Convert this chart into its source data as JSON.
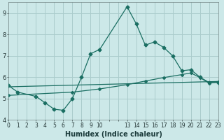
{
  "xlabel": "Humidex (Indice chaleur)",
  "bg_color": "#cce8e8",
  "grid_color": "#aacccc",
  "line_color": "#1a6e62",
  "line1_x": [
    0,
    1,
    3,
    4,
    5,
    6,
    7,
    8,
    9,
    10,
    13,
    14,
    15,
    16,
    17,
    18,
    19,
    20,
    21,
    22,
    23
  ],
  "line1_y": [
    5.6,
    5.3,
    5.1,
    4.8,
    4.5,
    4.45,
    5.0,
    6.0,
    7.1,
    7.3,
    9.3,
    8.5,
    7.5,
    7.65,
    7.4,
    7.0,
    6.3,
    6.35,
    6.0,
    5.75,
    5.75
  ],
  "line2_x": [
    0,
    23
  ],
  "line2_y": [
    5.55,
    5.8
  ],
  "line3_x": [
    0,
    7,
    10,
    13,
    15,
    17,
    19,
    20,
    21,
    22,
    23
  ],
  "line3_y": [
    5.15,
    5.3,
    5.45,
    5.65,
    5.82,
    5.98,
    6.12,
    6.2,
    5.98,
    5.72,
    5.78
  ],
  "xlim": [
    0,
    23
  ],
  "ylim": [
    4,
    9.5
  ],
  "yticks": [
    4,
    5,
    6,
    7,
    8,
    9
  ],
  "xtick_labels": [
    "0",
    "1",
    "2",
    "3",
    "4",
    "5",
    "6",
    "7",
    "8",
    "9",
    "10",
    "",
    "",
    "13",
    "14",
    "15",
    "16",
    "17",
    "18",
    "19",
    "20",
    "21",
    "22",
    "23"
  ],
  "xlabel_fontsize": 7,
  "tick_fontsize": 5.5
}
